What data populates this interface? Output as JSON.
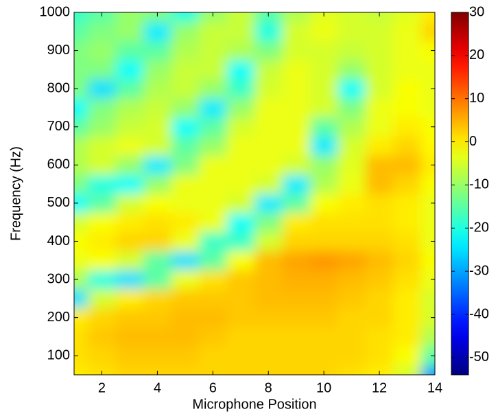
{
  "chart_data": {
    "type": "heatmap",
    "xlabel": "Microphone Position",
    "ylabel": "Frequency (Hz)",
    "x": [
      1,
      2,
      3,
      4,
      5,
      6,
      7,
      8,
      9,
      10,
      11,
      12,
      13,
      14
    ],
    "y": [
      50,
      100,
      150,
      200,
      250,
      300,
      350,
      400,
      450,
      500,
      550,
      600,
      650,
      700,
      750,
      800,
      850,
      900,
      950,
      1000
    ],
    "z": [
      [
        0,
        1,
        2,
        2,
        2,
        2,
        2,
        2,
        2,
        2,
        1,
        0,
        -5,
        -30
      ],
      [
        1,
        2,
        3,
        3,
        3,
        2,
        2,
        2,
        2,
        2,
        2,
        1,
        -2,
        -15
      ],
      [
        1,
        3,
        4,
        4,
        4,
        3,
        2,
        2,
        2,
        2,
        2,
        1,
        0,
        -8
      ],
      [
        0,
        2,
        3,
        3,
        4,
        4,
        3,
        3,
        3,
        3,
        2,
        2,
        0,
        -5
      ],
      [
        -25,
        -5,
        0,
        2,
        3,
        3,
        3,
        4,
        4,
        4,
        3,
        2,
        0,
        -5
      ],
      [
        -8,
        -20,
        -25,
        -15,
        -3,
        1,
        3,
        4,
        5,
        5,
        4,
        3,
        1,
        -3
      ],
      [
        -3,
        -2,
        -5,
        -15,
        -25,
        -15,
        -2,
        4,
        6,
        7,
        6,
        4,
        2,
        -2
      ],
      [
        -2,
        0,
        2,
        2,
        -3,
        -18,
        -18,
        -5,
        2,
        2,
        2,
        2,
        1,
        -3
      ],
      [
        -5,
        -2,
        0,
        1,
        0,
        -3,
        -22,
        -12,
        0,
        1,
        1,
        1,
        0,
        -3
      ],
      [
        -22,
        -15,
        -5,
        -2,
        -3,
        -3,
        -5,
        -24,
        -15,
        -2,
        0,
        1,
        0,
        -3
      ],
      [
        -12,
        -20,
        -22,
        -10,
        -3,
        -3,
        -3,
        -5,
        -24,
        -8,
        -3,
        4,
        2,
        -2
      ],
      [
        -8,
        -5,
        -10,
        -24,
        -12,
        -3,
        -3,
        -3,
        -5,
        -10,
        -4,
        4,
        4,
        0
      ],
      [
        -8,
        -5,
        -3,
        -5,
        -15,
        -10,
        -3,
        -3,
        -3,
        -24,
        -5,
        0,
        2,
        -1
      ],
      [
        -15,
        -10,
        -6,
        -5,
        -22,
        -15,
        -5,
        -3,
        -3,
        -15,
        -8,
        -3,
        0,
        -2
      ],
      [
        -22,
        -12,
        -8,
        -6,
        -10,
        -24,
        -10,
        -3,
        -3,
        -5,
        -12,
        -3,
        -2,
        -3
      ],
      [
        -12,
        -25,
        -15,
        -8,
        -6,
        -10,
        -18,
        -5,
        -3,
        -5,
        -22,
        -5,
        -2,
        -3
      ],
      [
        -12,
        -12,
        -22,
        -10,
        -6,
        -6,
        -22,
        -6,
        -3,
        -5,
        -10,
        -5,
        -3,
        -3
      ],
      [
        -12,
        -10,
        -15,
        -15,
        -8,
        -6,
        -8,
        -12,
        -5,
        -5,
        -6,
        -5,
        -3,
        -2
      ],
      [
        -15,
        -12,
        -10,
        -24,
        -10,
        -6,
        -6,
        -20,
        -5,
        -3,
        -5,
        -5,
        -3,
        2
      ],
      [
        -18,
        -15,
        -10,
        -12,
        -20,
        -10,
        -6,
        -15,
        -8,
        -4,
        -5,
        -6,
        -4,
        0
      ]
    ],
    "colormap": "jet",
    "clim": [
      -54,
      30
    ],
    "cticks": [
      30,
      20,
      10,
      0,
      -10,
      -20,
      -30,
      -40,
      -50
    ],
    "xlim": [
      1,
      14
    ],
    "xticks": [
      2,
      4,
      6,
      8,
      10,
      12,
      14
    ],
    "ylim": [
      50,
      1000
    ],
    "yticks": [
      100,
      200,
      300,
      400,
      500,
      600,
      700,
      800,
      900,
      1000
    ]
  }
}
